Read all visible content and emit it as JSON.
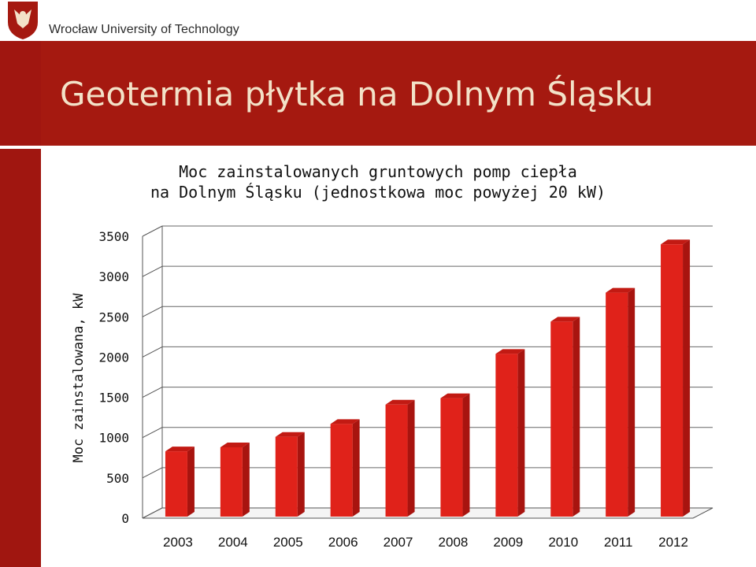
{
  "header": {
    "university_name": "Wrocław University of Technology"
  },
  "slide": {
    "title": "Geotermia płytka na Dolnym Śląsku"
  },
  "colors": {
    "brand_red": "#a51910",
    "title_text": "#f3e2c8",
    "bar_front": "#e0221a",
    "bar_side": "#a8140f",
    "bar_top": "#c21a13"
  },
  "chart_data": {
    "type": "bar",
    "title_line1": "Moc zainstalowanych gruntowych pomp ciepła",
    "title_line2": "na Dolnym Śląsku (jednostkowa moc powyżej 20 kW)",
    "xlabel": "",
    "ylabel": "Moc zainstalowana, kW",
    "categories": [
      "2003",
      "2004",
      "2005",
      "2006",
      "2007",
      "2008",
      "2009",
      "2010",
      "2011",
      "2012"
    ],
    "values": [
      830,
      880,
      1010,
      1170,
      1410,
      1490,
      2040,
      2440,
      2800,
      3400
    ],
    "ylim": [
      0,
      3500
    ],
    "yticks": [
      "0",
      "500",
      "1000",
      "1500",
      "2000",
      "2500",
      "3000",
      "3500"
    ],
    "grid": true,
    "legend": "none",
    "style": "3d-column"
  }
}
